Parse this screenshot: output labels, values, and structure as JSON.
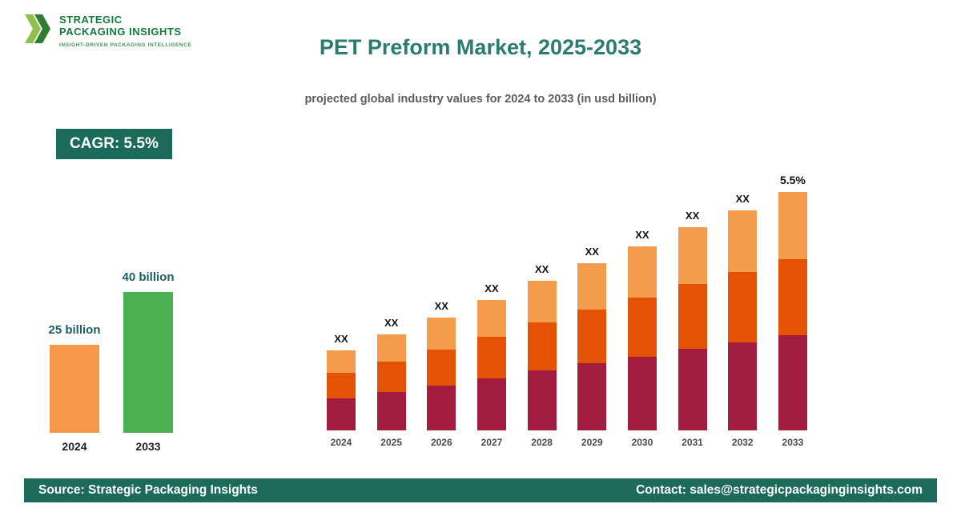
{
  "logo": {
    "name_line1": "STRATEGIC",
    "name_line2": "PACKAGING INSIGHTS",
    "tagline": "INSIGHT-DRIVEN PACKAGING INTELLIGENCE"
  },
  "header": {
    "title": "PET Preform Market, 2025-2033",
    "subtitle": "projected global industry values for 2024 to 2033 (in usd billion)"
  },
  "cagr": {
    "label": "CAGR: 5.5%"
  },
  "summary_chart": {
    "type": "bar",
    "bars": [
      {
        "year": "2024",
        "value": 25,
        "label": "25 billion",
        "color": "#F59847"
      },
      {
        "year": "2033",
        "value": 40,
        "label": "40 billion",
        "color": "#4CAF50"
      }
    ]
  },
  "chart_data": {
    "type": "bar",
    "stacked": true,
    "title": "PET Preform Market, 2025-2033",
    "xlabel": "",
    "ylabel": "",
    "value_axis_visible": false,
    "gridlines": false,
    "categories": [
      "2024",
      "2025",
      "2026",
      "2027",
      "2028",
      "2029",
      "2030",
      "2031",
      "2032",
      "2033"
    ],
    "series": [
      {
        "name": "bottom-segment",
        "color": "#A21C3F",
        "values": [
          40,
          48,
          56,
          65,
          75,
          84,
          92,
          102,
          110,
          119
        ]
      },
      {
        "name": "middle-segment",
        "color": "#E35205",
        "values": [
          32,
          38,
          45,
          52,
          60,
          67,
          74,
          81,
          88,
          95
        ]
      },
      {
        "name": "top-segment",
        "color": "#F59B4C",
        "values": [
          28,
          34,
          40,
          46,
          52,
          58,
          64,
          71,
          77,
          84
        ]
      }
    ],
    "bar_labels": [
      "XX",
      "XX",
      "XX",
      "XX",
      "XX",
      "XX",
      "XX",
      "XX",
      "XX",
      "5.5%"
    ]
  },
  "footer": {
    "source": "Source: Strategic Packaging Insights",
    "contact": "Contact: sales@strategicpackaginginsights.com"
  },
  "colors": {
    "accent_teal": "#1B6A5A",
    "title_teal": "#2A7D6E",
    "maroon": "#A21C3F",
    "dark_orange": "#E35205",
    "light_orange": "#F59B4C",
    "green": "#4CAF50",
    "orange": "#F59847"
  }
}
